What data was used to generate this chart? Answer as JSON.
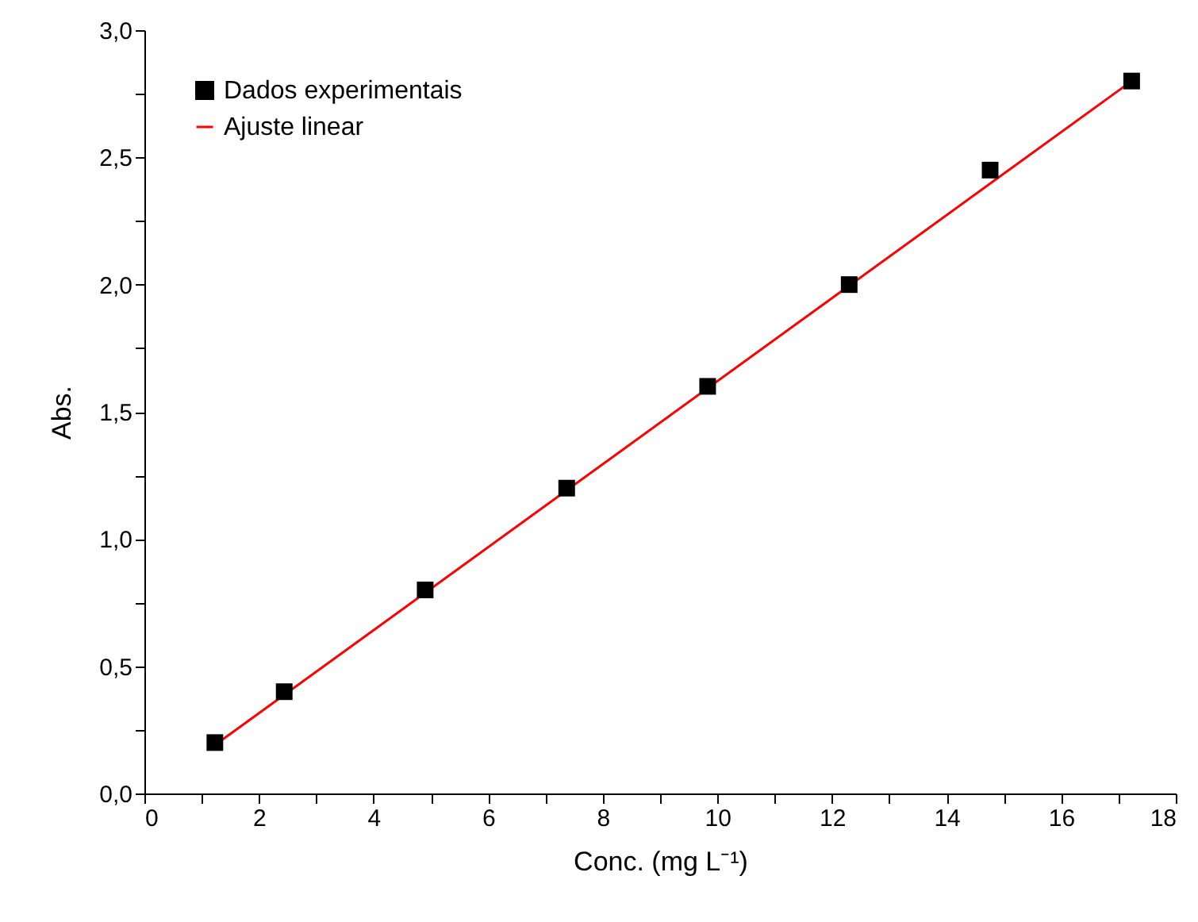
{
  "chart_data": {
    "type": "scatter",
    "xlabel": "Conc. (mg L⁻¹)",
    "ylabel": "Abs.",
    "xlim": [
      0,
      18
    ],
    "ylim": [
      0,
      3
    ],
    "xticks": [
      0,
      {
        "value": 1,
        "label": null
      },
      2,
      {
        "value": 3,
        "label": null
      },
      4,
      {
        "value": 5,
        "label": null
      },
      6,
      {
        "value": 7,
        "label": null
      },
      8,
      {
        "value": 9,
        "label": null
      },
      10,
      {
        "value": 11,
        "label": null
      },
      12,
      {
        "value": 13,
        "label": null
      },
      14,
      {
        "value": 15,
        "label": null
      },
      16,
      {
        "value": 17,
        "label": null
      },
      18
    ],
    "yticks": [
      {
        "value": 0,
        "label": "0,0"
      },
      {
        "value": 0.25,
        "label": null
      },
      {
        "value": 0.5,
        "label": "0,5"
      },
      {
        "value": 0.75,
        "label": null
      },
      {
        "value": 1,
        "label": "1,0"
      },
      {
        "value": 1.25,
        "label": null
      },
      {
        "value": 1.5,
        "label": "1,5"
      },
      {
        "value": 1.75,
        "label": null
      },
      {
        "value": 2,
        "label": "2,0"
      },
      {
        "value": 2.25,
        "label": null
      },
      {
        "value": 2.5,
        "label": "2,5"
      },
      {
        "value": 2.75,
        "label": null
      },
      {
        "value": 3,
        "label": "3,0"
      }
    ],
    "grid": false,
    "legend": "top left",
    "series": [
      {
        "name": "Dados experimentais",
        "marker": "square",
        "color": "#000000",
        "x": [
          1.23,
          2.44,
          4.9,
          7.37,
          9.83,
          12.3,
          14.76,
          17.23
        ],
        "values": [
          0.2,
          0.4,
          0.8,
          1.2,
          1.6,
          2.0,
          2.45,
          2.8
        ]
      },
      {
        "name": "Ajuste linear",
        "type": "line",
        "marker": "none",
        "line_style": "solid",
        "color": "#ff0000",
        "x": [
          1.23,
          17.23
        ],
        "values": [
          0.19,
          2.8
        ]
      }
    ]
  }
}
